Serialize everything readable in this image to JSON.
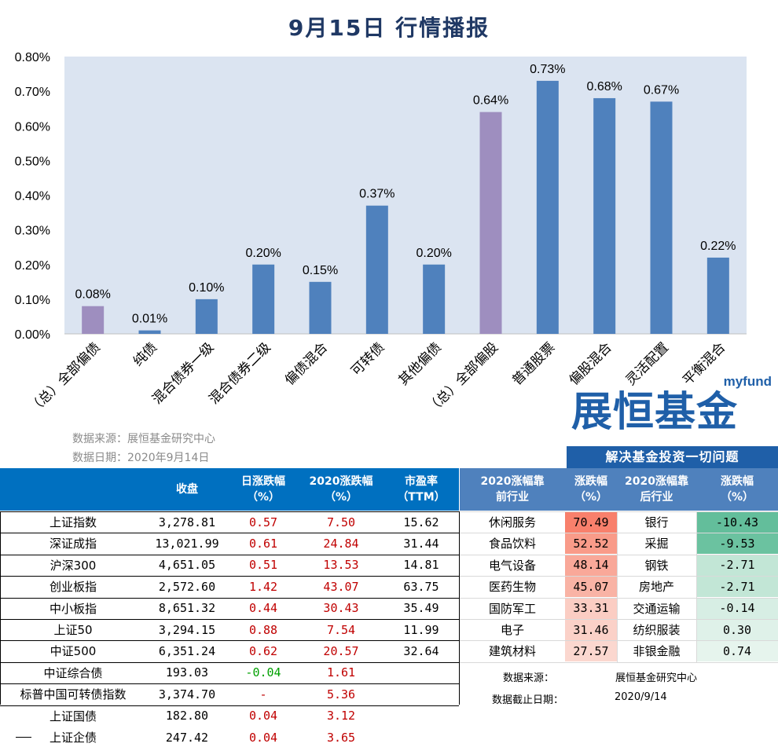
{
  "title": "9月15日  行情播报",
  "chart_data": {
    "type": "bar",
    "categories": [
      "（总）全部偏债",
      "纯债",
      "混合债券一级",
      "混合债券二级",
      "偏债混合",
      "可转债",
      "其他偏债",
      "（总）全部偏股",
      "普通股票",
      "偏股混合",
      "灵活配置",
      "平衡混合"
    ],
    "values": [
      0.08,
      0.01,
      0.1,
      0.2,
      0.15,
      0.37,
      0.2,
      0.64,
      0.73,
      0.68,
      0.67,
      0.22
    ],
    "value_labels": [
      "0.08%",
      "0.01%",
      "0.10%",
      "0.20%",
      "0.15%",
      "0.37%",
      "0.20%",
      "0.64%",
      "0.73%",
      "0.68%",
      "0.67%",
      "0.22%"
    ],
    "highlight": [
      true,
      false,
      false,
      false,
      false,
      false,
      false,
      true,
      false,
      false,
      false,
      false
    ],
    "yticks": [
      "0.00%",
      "0.10%",
      "0.20%",
      "0.30%",
      "0.40%",
      "0.50%",
      "0.60%",
      "0.70%",
      "0.80%"
    ],
    "ylim": [
      0,
      0.8
    ],
    "xlabel": "",
    "ylabel": "",
    "colors": {
      "bar": "#4f81bd",
      "highlight": "#9e8ebf",
      "plot_bg": "#dbe4f1"
    }
  },
  "source": {
    "line1": "数据来源：展恒基金研究中心",
    "line2": "数据日期：2020年9月14日"
  },
  "logo": {
    "myfund": "myfund",
    "brand": "展恒基金",
    "slogan": "解决基金投资一切问题"
  },
  "index_table": {
    "headers": [
      "收盘",
      "日涨跌幅\n（%）",
      "2020涨跌幅\n（%）",
      "市盈率\n（TTM）"
    ],
    "rows": [
      {
        "name": "上证指数",
        "close": "3,278.81",
        "day": "0.57",
        "ytd": "7.50",
        "pe": "15.62"
      },
      {
        "name": "深证成指",
        "close": "13,021.99",
        "day": "0.61",
        "ytd": "24.84",
        "pe": "31.44"
      },
      {
        "name": "沪深300",
        "close": "4,651.05",
        "day": "0.51",
        "ytd": "13.53",
        "pe": "14.81"
      },
      {
        "name": "创业板指",
        "close": "2,572.60",
        "day": "1.42",
        "ytd": "43.07",
        "pe": "63.75"
      },
      {
        "name": "中小板指",
        "close": "8,651.32",
        "day": "0.44",
        "ytd": "30.43",
        "pe": "35.49"
      },
      {
        "name": "上证50",
        "close": "3,294.15",
        "day": "0.88",
        "ytd": "7.54",
        "pe": "11.99"
      },
      {
        "name": "中证500",
        "close": "6,351.24",
        "day": "0.62",
        "ytd": "20.57",
        "pe": "32.64"
      },
      {
        "name": "中证综合债",
        "close": "193.03",
        "day": "-0.04",
        "ytd": "1.61",
        "pe": ""
      },
      {
        "name": "标普中国可转债指数",
        "close": "3,374.70",
        "day": "-",
        "ytd": "5.36",
        "pe": ""
      },
      {
        "name": "上证国债",
        "close": "182.80",
        "day": "0.04",
        "ytd": "3.12",
        "pe": ""
      },
      {
        "name": "上证企债",
        "close": "247.42",
        "day": "0.04",
        "ytd": "3.65",
        "pe": ""
      }
    ]
  },
  "industry_table": {
    "headers": [
      "2020涨幅靠\n前行业",
      "涨跌幅\n（%）",
      "2020涨幅靠\n后行业",
      "涨跌幅\n（%）"
    ],
    "rows": [
      {
        "top": "休闲服务",
        "top_val": "70.49",
        "bottom": "银行",
        "bottom_val": "-10.43"
      },
      {
        "top": "食品饮料",
        "top_val": "52.52",
        "bottom": "采掘",
        "bottom_val": "-9.53"
      },
      {
        "top": "电气设备",
        "top_val": "48.14",
        "bottom": "钢铁",
        "bottom_val": "-2.71"
      },
      {
        "top": "医药生物",
        "top_val": "45.07",
        "bottom": "房地产",
        "bottom_val": "-2.71"
      },
      {
        "top": "国防军工",
        "top_val": "33.31",
        "bottom": "交通运输",
        "bottom_val": "-0.14"
      },
      {
        "top": "电子",
        "top_val": "31.46",
        "bottom": "纺织服装",
        "bottom_val": "0.30"
      },
      {
        "top": "建筑材料",
        "top_val": "27.57",
        "bottom": "非银金融",
        "bottom_val": "0.74"
      }
    ],
    "top_colors": [
      "#f8806c",
      "#f99b89",
      "#f9a899",
      "#f9b3a5",
      "#fbcdc3",
      "#fbd1c8",
      "#fbd7cf"
    ],
    "bottom_colors": [
      "#63be9b",
      "#6bc2a0",
      "#c2e6d6",
      "#c2e6d6",
      "#d7eee4",
      "#dff1e9",
      "#e6f4ed"
    ]
  },
  "footer": {
    "source_label": "数据来源：",
    "source_value": "展恒基金研究中心",
    "date_label": "数据截止日期：",
    "date_value": "2020/9/14"
  }
}
